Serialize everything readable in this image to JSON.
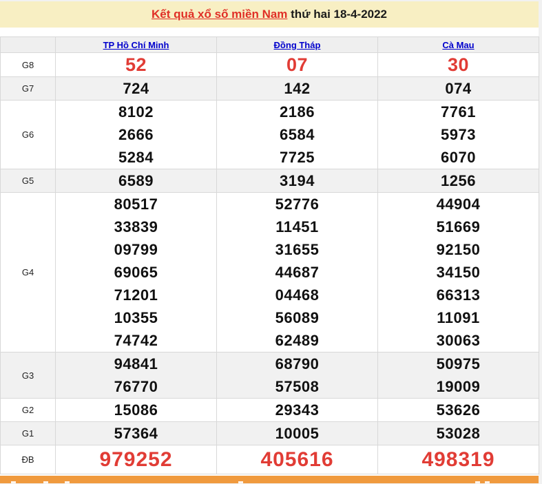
{
  "header": {
    "title_link": "Kết quả xổ số miền Nam",
    "title_suffix": " thứ hai 18-4-2022"
  },
  "table": {
    "columns": [
      "TP Hồ Chí Minh",
      "Đồng Tháp",
      "Cà Mau"
    ],
    "rows": [
      {
        "label": "G8",
        "style": "g8",
        "values": [
          [
            "52"
          ],
          [
            "07"
          ],
          [
            "30"
          ]
        ]
      },
      {
        "label": "G7",
        "style": "normal",
        "values": [
          [
            "724"
          ],
          [
            "142"
          ],
          [
            "074"
          ]
        ]
      },
      {
        "label": "G6",
        "style": "normal",
        "values": [
          [
            "8102",
            "2666",
            "5284"
          ],
          [
            "2186",
            "6584",
            "7725"
          ],
          [
            "7761",
            "5973",
            "6070"
          ]
        ]
      },
      {
        "label": "G5",
        "style": "normal",
        "values": [
          [
            "6589"
          ],
          [
            "3194"
          ],
          [
            "1256"
          ]
        ]
      },
      {
        "label": "G4",
        "style": "normal",
        "values": [
          [
            "80517",
            "33839",
            "09799",
            "69065",
            "71201",
            "10355",
            "74742"
          ],
          [
            "52776",
            "11451",
            "31655",
            "44687",
            "04468",
            "56089",
            "62489"
          ],
          [
            "44904",
            "51669",
            "92150",
            "34150",
            "66313",
            "11091",
            "30063"
          ]
        ]
      },
      {
        "label": "G3",
        "style": "normal",
        "values": [
          [
            "94841",
            "76770"
          ],
          [
            "68790",
            "57508"
          ],
          [
            "50975",
            "19009"
          ]
        ]
      },
      {
        "label": "G2",
        "style": "normal",
        "values": [
          [
            "15086"
          ],
          [
            "29343"
          ],
          [
            "53626"
          ]
        ]
      },
      {
        "label": "G1",
        "style": "normal",
        "values": [
          [
            "57364"
          ],
          [
            "10005"
          ],
          [
            "53028"
          ]
        ]
      },
      {
        "label": "ĐB",
        "style": "special",
        "values": [
          [
            "979252"
          ],
          [
            "405616"
          ],
          [
            "498319"
          ]
        ]
      }
    ]
  },
  "colors": {
    "title_bg": "#f8efc3",
    "link_red": "#e02f26",
    "number_red": "#e13c35",
    "link_blue": "#0000cc",
    "stripe_gray": "#f1f1f1",
    "border_gray": "#d8d8d8",
    "footer_orange": "#f09a3e"
  }
}
